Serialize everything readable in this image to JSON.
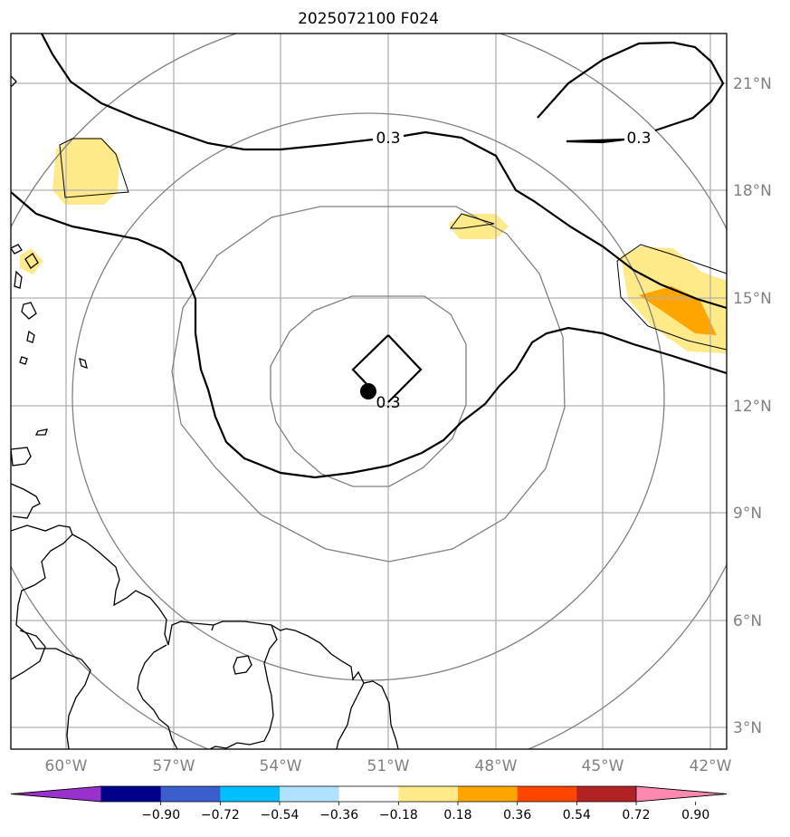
{
  "title": "2025072100 F024",
  "map": {
    "lon_range": [
      -62,
      -42
    ],
    "lat_range": [
      2.5,
      22.5
    ],
    "lon_ticks": [
      "60°W",
      "57°W",
      "54°W",
      "51°W",
      "48°W",
      "45°W",
      "42°W"
    ],
    "lat_ticks": [
      "21°N",
      "18°N",
      "15°N",
      "12°N",
      "9°N",
      "6°N",
      "3°N"
    ],
    "grid": true,
    "storm_center": {
      "lon": -51.6,
      "lat": 12.4
    },
    "contour_labels": [
      "0.3",
      "0.3",
      "0.3"
    ],
    "colors": {
      "shade_low": "#ffea8a",
      "shade_mid": "#ffa500",
      "contour": "#000000",
      "range_rings": "#808080",
      "gridlines": "#b0b0b0"
    }
  },
  "colorbar": {
    "tick_labels": [
      "−0.90",
      "−0.72",
      "−0.54",
      "−0.36",
      "−0.18",
      "0.18",
      "0.36",
      "0.54",
      "0.72",
      "0.90"
    ],
    "colors": [
      "#9932cc",
      "#00008b",
      "#3a5fcd",
      "#00bfff",
      "#b0e2ff",
      "#ffffff",
      "#ffea8a",
      "#ffa500",
      "#ff4500",
      "#b22222",
      "#ff88b0"
    ]
  }
}
